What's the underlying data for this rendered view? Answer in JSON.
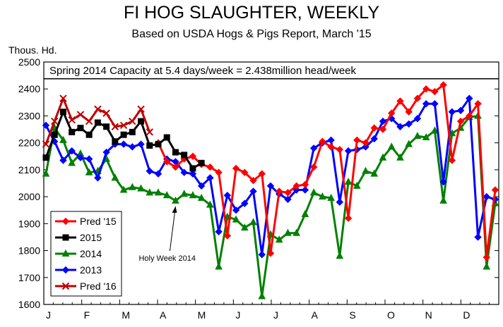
{
  "chart_data": {
    "type": "line",
    "title": "FI HOG SLAUGHTER, WEEKLY",
    "subtitle": "Based on USDA Hogs & Pigs Report, March '15",
    "ylabel": "Thous. Hd.",
    "ylim": [
      1600,
      2500
    ],
    "yticks": [
      1600,
      1700,
      1800,
      1900,
      2000,
      2100,
      2200,
      2300,
      2400,
      2500
    ],
    "x_range": [
      1,
      53
    ],
    "month_labels": [
      "J",
      "F",
      "M",
      "A",
      "M",
      "J",
      "J",
      "A",
      "S",
      "O",
      "N",
      "D"
    ],
    "grid": false,
    "legend_position": "bottom-left",
    "reference_line": {
      "value": 2438,
      "label": "Spring 2014 Capacity at 5.4 days/week = 2.438million head/week"
    },
    "annotation": {
      "text": "Holy Week 2014",
      "week": 16
    },
    "series": [
      {
        "name": "Pred '15",
        "color": "#ff0000",
        "marker": "diamond",
        "x": [
          14,
          15,
          16,
          17,
          18,
          19,
          20,
          21,
          22,
          23,
          24,
          25,
          26,
          27,
          28,
          29,
          30,
          31,
          32,
          33,
          34,
          35,
          36,
          37,
          38,
          39,
          40,
          41,
          42,
          43,
          44,
          45,
          46,
          47,
          48,
          49,
          50,
          51,
          52,
          53
        ],
        "values": [
          2200,
          2130,
          2110,
          2140,
          2150,
          2120,
          2110,
          2090,
          1855,
          2105,
          2090,
          2060,
          2085,
          1790,
          2020,
          2015,
          2040,
          2045,
          2110,
          2205,
          2185,
          2175,
          1920,
          2210,
          2200,
          2255,
          2250,
          2310,
          2355,
          2315,
          2365,
          2400,
          2390,
          2415,
          2135,
          2280,
          2300,
          2345,
          1775,
          2025
        ]
      },
      {
        "name": "2015",
        "color": "#000000",
        "marker": "square",
        "x": [
          1,
          2,
          3,
          4,
          5,
          6,
          7,
          8,
          9,
          10,
          11,
          12,
          13,
          14,
          15,
          16,
          17,
          18,
          19,
          20,
          21
        ],
        "values": [
          2145,
          2230,
          2315,
          2240,
          2255,
          2230,
          2275,
          2260,
          2205,
          2230,
          2240,
          2280,
          2190,
          2195,
          2220,
          2165,
          2155,
          2105,
          2125,
          null,
          null
        ]
      },
      {
        "name": "2014",
        "color": "#008000",
        "marker": "triangle",
        "x": [
          1,
          2,
          3,
          4,
          5,
          6,
          7,
          8,
          9,
          10,
          11,
          12,
          13,
          14,
          15,
          16,
          17,
          18,
          19,
          20,
          21,
          22,
          23,
          24,
          25,
          26,
          27,
          28,
          29,
          30,
          31,
          32,
          33,
          34,
          35,
          36,
          37,
          38,
          39,
          40,
          41,
          42,
          43,
          44,
          45,
          46,
          47,
          48,
          49,
          50,
          51,
          52,
          53
        ],
        "values": [
          2085,
          2255,
          2210,
          2125,
          2160,
          2090,
          2095,
          2140,
          2070,
          2025,
          2035,
          2030,
          2015,
          2015,
          2005,
          1985,
          2010,
          2005,
          1995,
          1970,
          1740,
          1925,
          1915,
          1885,
          1905,
          1630,
          1860,
          1840,
          1865,
          1865,
          1935,
          2015,
          2000,
          1995,
          1780,
          2055,
          2040,
          2095,
          2085,
          2145,
          2185,
          2145,
          2195,
          2225,
          2220,
          2245,
          1985,
          2235,
          2255,
          2295,
          2300,
          1740,
          1975
        ]
      },
      {
        "name": "2013",
        "color": "#0000ff",
        "marker": "diamond",
        "x": [
          1,
          2,
          3,
          4,
          5,
          6,
          7,
          8,
          9,
          10,
          11,
          12,
          13,
          14,
          15,
          16,
          17,
          18,
          19,
          20,
          21,
          22,
          23,
          24,
          25,
          26,
          27,
          28,
          29,
          30,
          31,
          32,
          33,
          34,
          35,
          36,
          37,
          38,
          39,
          40,
          41,
          42,
          43,
          44,
          45,
          46,
          47,
          48,
          49,
          50,
          51,
          52,
          53
        ],
        "values": [
          2265,
          2205,
          2135,
          2170,
          2145,
          2140,
          2070,
          2165,
          2195,
          2195,
          2185,
          2195,
          2095,
          2085,
          2140,
          2130,
          2090,
          2085,
          2040,
          2070,
          1870,
          2005,
          1950,
          1975,
          2020,
          1785,
          2040,
          2010,
          1990,
          2025,
          2025,
          2180,
          2200,
          2210,
          1980,
          2170,
          2175,
          2185,
          2215,
          2280,
          2290,
          2260,
          2270,
          2290,
          2345,
          2345,
          2055,
          2315,
          2320,
          2365,
          1850,
          2000,
          1990
        ]
      },
      {
        "name": "Pred '16",
        "color": "#c00000",
        "marker": "x",
        "x": [
          1,
          2,
          3,
          4,
          5,
          6,
          7,
          8,
          9,
          10,
          11,
          12,
          13
        ],
        "values": [
          2195,
          2280,
          2365,
          2285,
          2305,
          2280,
          2325,
          2310,
          2260,
          2265,
          2280,
          2325,
          2240
        ]
      }
    ]
  }
}
